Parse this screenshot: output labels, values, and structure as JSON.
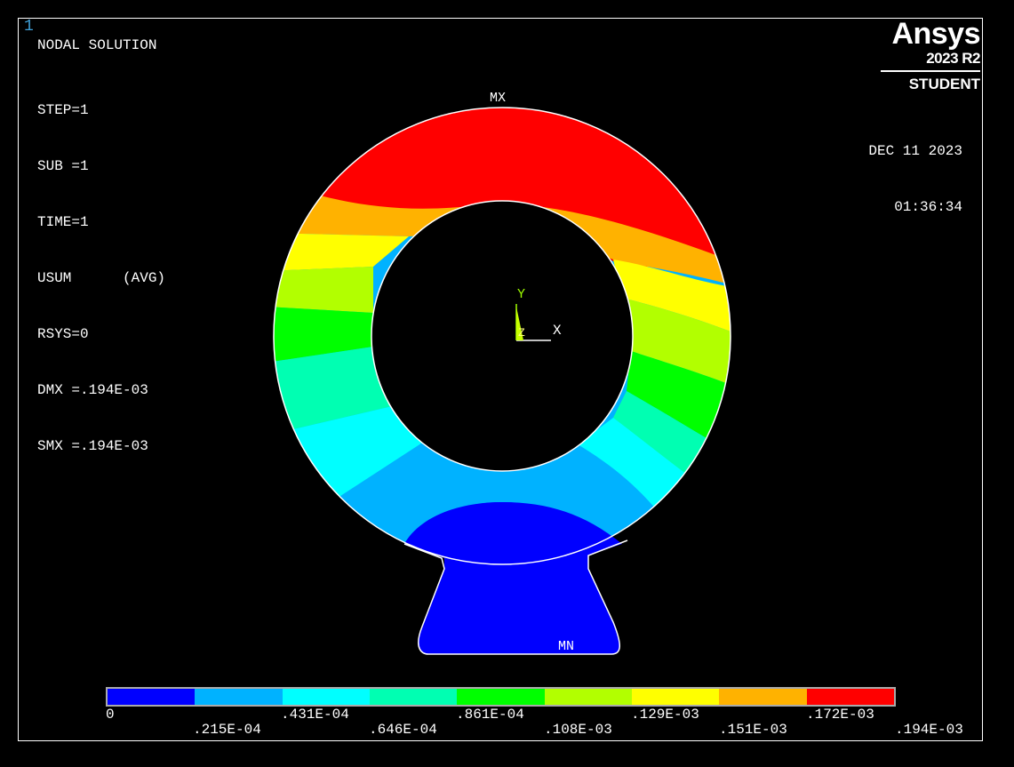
{
  "window_number": "1",
  "info": {
    "title": "NODAL SOLUTION",
    "lines": [
      "STEP=1",
      "SUB =1",
      "TIME=1",
      "USUM      (AVG)",
      "RSYS=0",
      "DMX =.194E-03",
      "SMX =.194E-03"
    ]
  },
  "logo": {
    "brand": "Ansys",
    "version": "2023 R2",
    "edition": "STUDENT"
  },
  "date": "DEC 11 2023",
  "time": "01:36:34",
  "markers": {
    "max": "MX",
    "min": "MN"
  },
  "triad": {
    "y": "Y",
    "z": "Z",
    "x": "X"
  },
  "legend": {
    "colors": [
      "#0000ff",
      "#00b2ff",
      "#00ffff",
      "#00ffb2",
      "#00ff00",
      "#b2ff00",
      "#ffff00",
      "#ffb200",
      "#ff0000"
    ],
    "top_labels": [
      "0",
      ".431E-04",
      ".861E-04",
      ".129E-03",
      ".172E-03"
    ],
    "bottom_labels": [
      ".215E-04",
      ".646E-04",
      ".108E-03",
      ".151E-03",
      ".194E-03"
    ]
  }
}
